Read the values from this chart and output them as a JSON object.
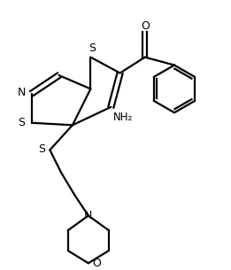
{
  "bg_color": "#ffffff",
  "line_color": "#000000",
  "line_width": 1.6,
  "figsize": [
    2.61,
    3.05
  ],
  "dpi": 100,
  "xlim": [
    0,
    10
  ],
  "ylim": [
    0,
    11.7
  ]
}
